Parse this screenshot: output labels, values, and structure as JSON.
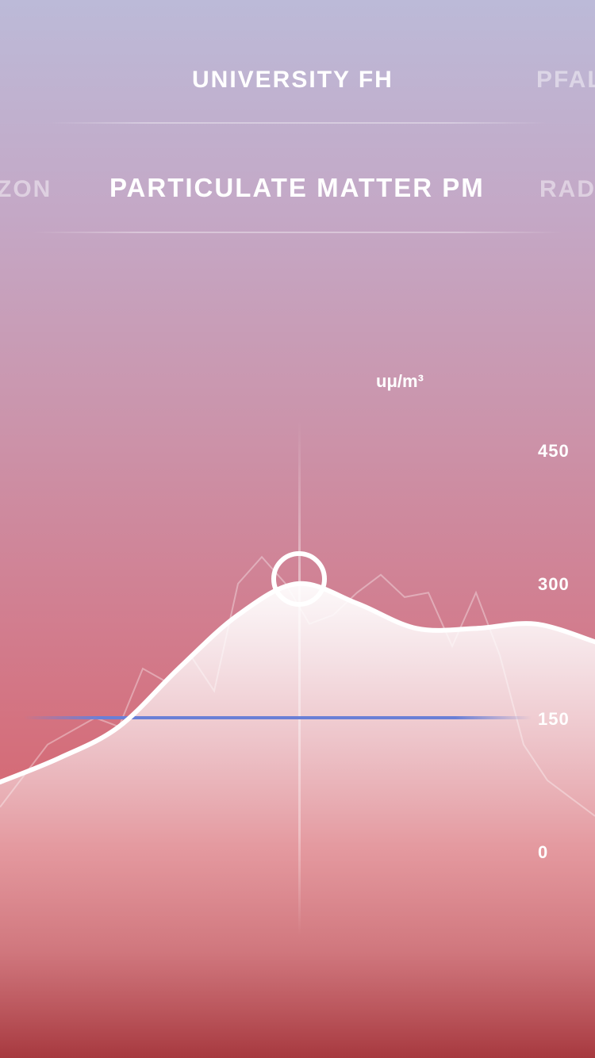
{
  "location_pager": {
    "current": "UNIVERSITY FH",
    "next": "PFAL"
  },
  "metric_pager": {
    "previous": "ZON",
    "current": "PARTICULATE MATTER PM",
    "next": "RAD"
  },
  "chart_data": {
    "type": "area",
    "ylabel": "uμ/m³",
    "y_ticks": [
      "450",
      "300",
      "150",
      "0"
    ],
    "ylim": [
      0,
      450
    ],
    "threshold": 150,
    "selected_value": 300,
    "smooth_series": {
      "x": [
        0,
        1,
        2,
        3,
        4,
        5,
        6,
        7,
        8,
        9,
        10
      ],
      "values": [
        78,
        105,
        140,
        205,
        265,
        300,
        278,
        250,
        250,
        255,
        235
      ]
    },
    "raw_series": {
      "x": [
        0,
        0.8,
        1.6,
        2.0,
        2.4,
        2.8,
        3.2,
        3.6,
        4.0,
        4.4,
        4.8,
        5.2,
        5.6,
        6.0,
        6.4,
        6.8,
        7.2,
        7.6,
        8.0,
        8.4,
        8.8,
        9.2,
        9.6,
        10
      ],
      "values": [
        50,
        120,
        150,
        140,
        205,
        190,
        220,
        180,
        300,
        330,
        300,
        255,
        265,
        290,
        310,
        285,
        290,
        230,
        290,
        220,
        120,
        80,
        60,
        40
      ]
    },
    "colors": {
      "threshold": "#6a7fd6",
      "area_top": "#ffffff"
    }
  }
}
